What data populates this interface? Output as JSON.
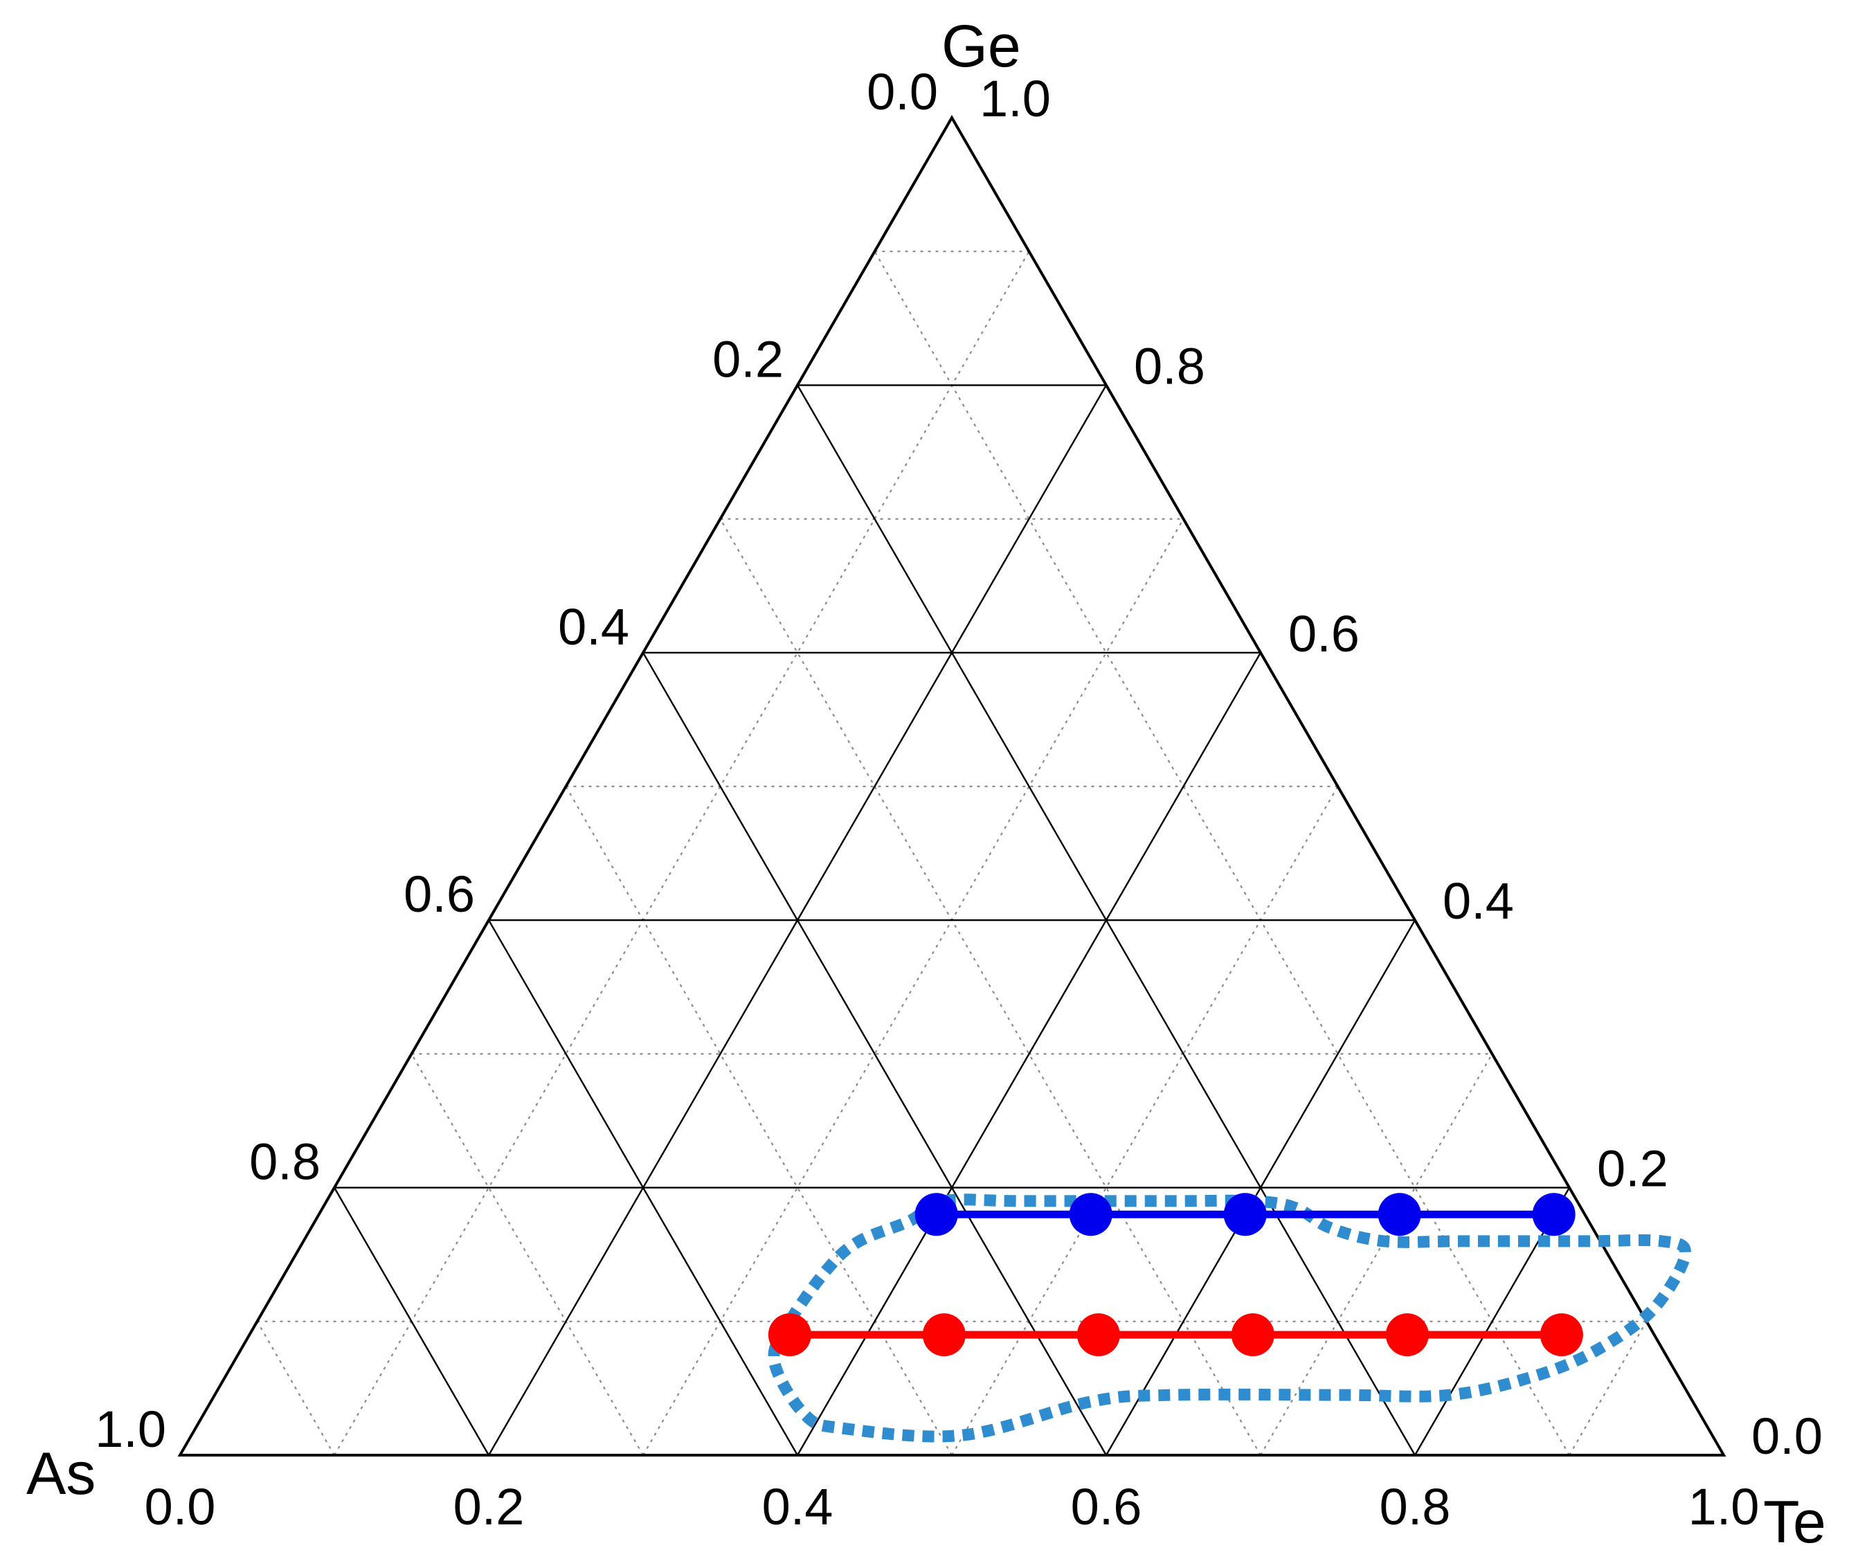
{
  "chart_data": {
    "type": "scatter",
    "subtype": "ternary",
    "title": "",
    "vertices": {
      "top": "Ge",
      "left": "As",
      "right": "Te"
    },
    "axes": {
      "bottom": {
        "ticks": [
          "0.0",
          "0.2",
          "0.4",
          "0.6",
          "0.8",
          "1.0"
        ],
        "tick_values": [
          0,
          0.2,
          0.4,
          0.6,
          0.8,
          1.0
        ]
      },
      "left": {
        "ticks": [
          "0.0",
          "0.2",
          "0.4",
          "0.6",
          "0.8",
          "1.0"
        ],
        "tick_values": [
          0,
          0.2,
          0.4,
          0.6,
          0.8,
          1.0
        ]
      },
      "right": {
        "ticks": [
          "0.0",
          "0.2",
          "0.4",
          "0.6",
          "0.8",
          "1.0"
        ],
        "tick_values": [
          0,
          0.2,
          0.4,
          0.6,
          0.8,
          1.0
        ]
      }
    },
    "grid": {
      "major": 0.2,
      "minor": 0.1
    },
    "series": [
      {
        "color": "#0000ee",
        "points": [
          {
            "x": 0.4,
            "ge": 0.18
          },
          {
            "x": 0.5,
            "ge": 0.18
          },
          {
            "x": 0.6,
            "ge": 0.18
          },
          {
            "x": 0.7,
            "ge": 0.18
          },
          {
            "x": 0.8,
            "ge": 0.18
          }
        ],
        "line_end_x": 0.81
      },
      {
        "color": "#ff0000",
        "points": [
          {
            "x": 0.35,
            "ge": 0.09
          },
          {
            "x": 0.45,
            "ge": 0.09
          },
          {
            "x": 0.55,
            "ge": 0.09
          },
          {
            "x": 0.65,
            "ge": 0.09
          },
          {
            "x": 0.75,
            "ge": 0.09
          },
          {
            "x": 0.85,
            "ge": 0.09
          }
        ]
      }
    ],
    "region": {
      "style": "dotted",
      "color": "#2e8ccf",
      "outline": [
        [
          0.4,
          0.19
        ],
        [
          0.45,
          0.19
        ],
        [
          0.55,
          0.19
        ],
        [
          0.6,
          0.19
        ],
        [
          0.63,
          0.185
        ],
        [
          0.66,
          0.17
        ],
        [
          0.7,
          0.16
        ],
        [
          0.75,
          0.16
        ],
        [
          0.83,
          0.16
        ],
        [
          0.88,
          0.16
        ],
        [
          0.9,
          0.15
        ],
        [
          0.9,
          0.11
        ],
        [
          0.88,
          0.08
        ],
        [
          0.85,
          0.06
        ],
        [
          0.8,
          0.045
        ],
        [
          0.73,
          0.045
        ],
        [
          0.62,
          0.045
        ],
        [
          0.57,
          0.04
        ],
        [
          0.5,
          0.015
        ],
        [
          0.42,
          0.02
        ],
        [
          0.39,
          0.03
        ],
        [
          0.35,
          0.07
        ],
        [
          0.345,
          0.1
        ],
        [
          0.35,
          0.14
        ],
        [
          0.36,
          0.16
        ],
        [
          0.385,
          0.175
        ]
      ]
    }
  }
}
